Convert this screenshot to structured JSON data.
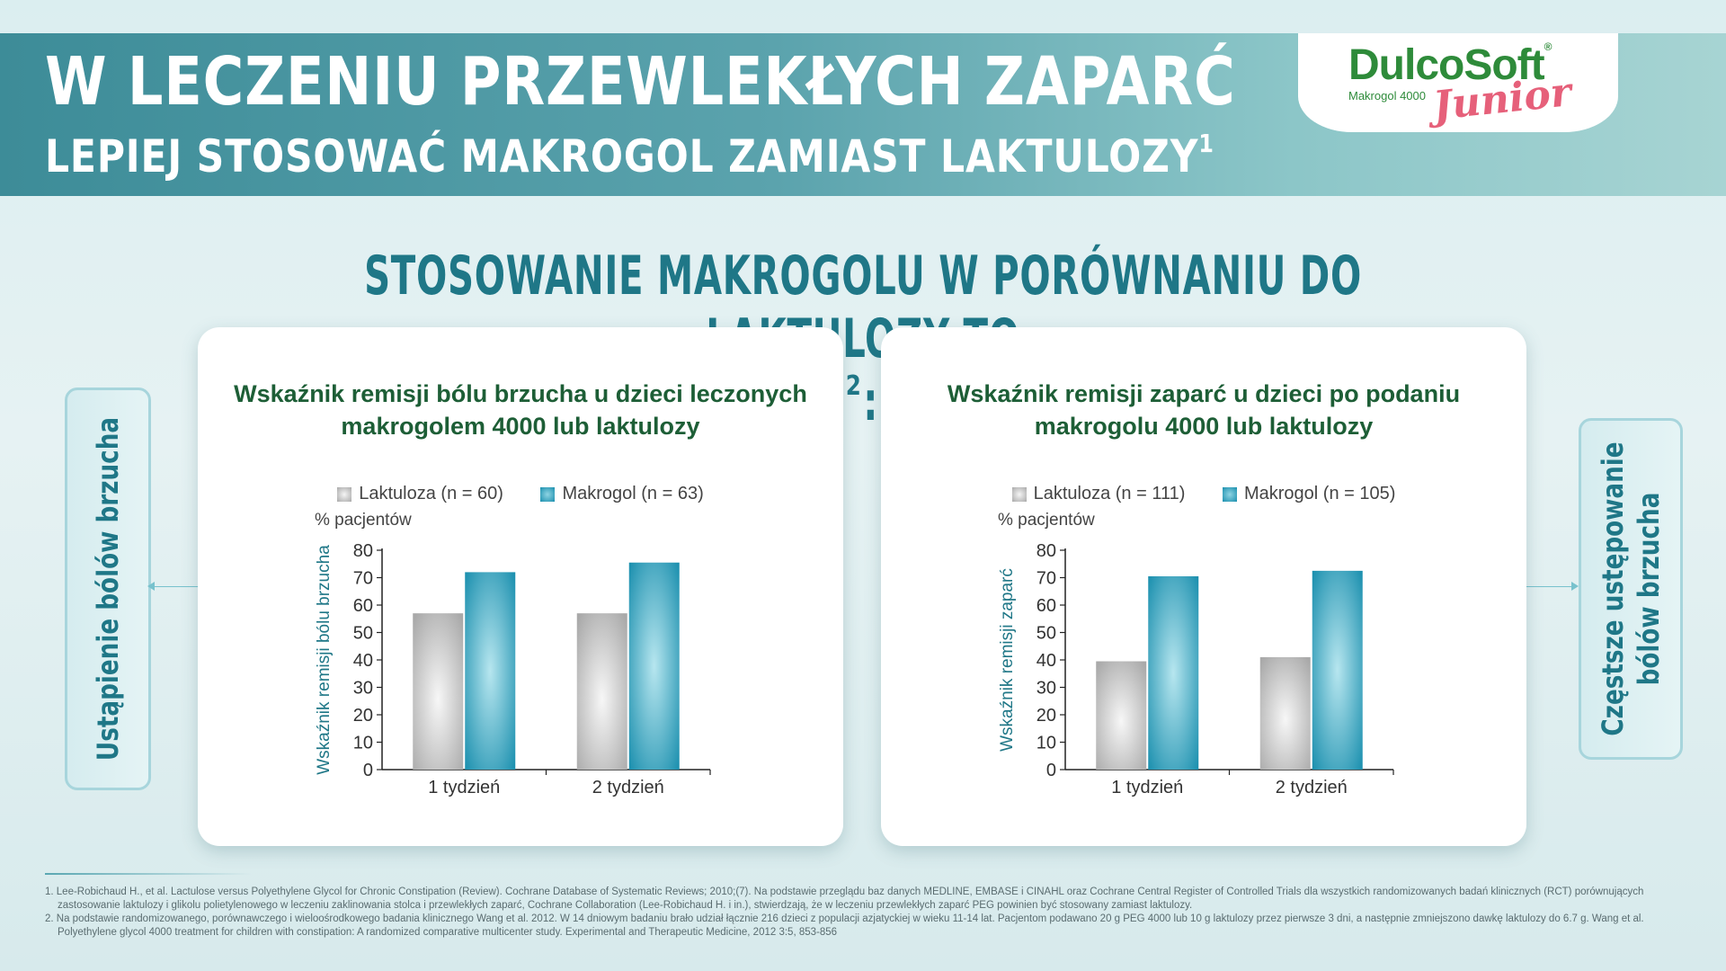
{
  "header": {
    "line1": "W leczeniu przewlekłych zaparć",
    "line2": "lepiej stosować makrogol zamiast laktulozy",
    "line2_sup": "1"
  },
  "logo": {
    "brand": "DulcoSoft",
    "registered": "®",
    "subtitle": "Makrogol 4000",
    "variant": "Junior"
  },
  "section_title": {
    "text": "Stosowanie makrogolu w porównaniu do laktulozy to",
    "sup": "2",
    "suffix": ":"
  },
  "side_labels": {
    "left": "Ustąpienie bólów brzucha",
    "right_line1": "Częstsze ustępowanie",
    "right_line2": "bólów brzucha"
  },
  "colors": {
    "gray_bar": "#a9a9a9",
    "blue_bar": "#1a8fae",
    "title_green": "#1d5e36",
    "accent_teal": "#1f7787"
  },
  "chart_data": [
    {
      "type": "bar",
      "title": "Wskaźnik remisji bólu brzucha u dzieci leczonych makrogolem 4000 lub laktulozy",
      "title_line1": "Wskaźnik remisji bólu brzucha u dzieci leczonych",
      "title_line2": "makrogolem 4000 lub laktulozy",
      "unit_label": "% pacjentów",
      "ylabel": "Wskaźnik remisji bólu brzucha",
      "categories": [
        "1 tydzień",
        "2 tydzień"
      ],
      "series": [
        {
          "name": "Laktuloza (n = 60)",
          "values": [
            57,
            57
          ]
        },
        {
          "name": "Makrogol (n = 63)",
          "values": [
            72,
            75.5
          ]
        }
      ],
      "ylim": [
        0,
        80
      ],
      "yticks": [
        0,
        10,
        20,
        30,
        40,
        50,
        60,
        70,
        80
      ],
      "legend": "top"
    },
    {
      "type": "bar",
      "title": "Wskaźnik remisji zaparć u dzieci po podaniu makrogolu 4000 lub laktulozy",
      "title_line1": "Wskaźnik remisji zaparć u dzieci po podaniu",
      "title_line2": "makrogolu 4000 lub laktulozy",
      "unit_label": "% pacjentów",
      "ylabel": "Wskaźnik remisji zaparć",
      "categories": [
        "1 tydzień",
        "2 tydzień"
      ],
      "series": [
        {
          "name": "Laktuloza (n = 111)",
          "values": [
            39.5,
            41
          ]
        },
        {
          "name": "Makrogol (n = 105)",
          "values": [
            70.5,
            72.5
          ]
        }
      ],
      "ylim": [
        0,
        80
      ],
      "yticks": [
        0,
        10,
        20,
        30,
        40,
        50,
        60,
        70,
        80
      ],
      "legend": "top"
    }
  ],
  "footnotes": [
    "1. Lee-Robichaud H., et al. Lactulose versus Polyethylene Glycol for Chronic Constipation (Review). Cochrane Database of Systematic Reviews; 2010;(7). Na podstawie przeglądu baz danych MEDLINE, EMBASE i CINAHL oraz Cochrane Central Register of Controlled Trials dla wszystkich randomizowanych badań klinicznych (RCT) porównujących zastosowanie laktulozy i glikolu polietylenowego w leczeniu zaklinowania stolca i przewlekłych zaparć, Cochrane Collaboration (Lee-Robichaud H. i in.), stwierdzają, że w leczeniu przewlekłych zaparć PEG powinien być stosowany zamiast laktulozy.",
    "2. Na podstawie randomizowanego, porównawczego i wieloośrodkowego badania klinicznego Wang et al. 2012. W 14 dniowym badaniu brało udział łącznie 216 dzieci z populacji azjatyckiej w wieku 11-14 lat. Pacjentom podawano 20 g PEG 4000 lub 10 g laktulozy przez pierwsze 3 dni, a następnie zmniejszono dawkę laktulozy do 6.7 g. Wang et al. Polyethylene glycol 4000 treatment for children with constipation: A randomized comparative multicenter study. Experimental and Therapeutic Medicine, 2012 3:5, 853-856"
  ]
}
